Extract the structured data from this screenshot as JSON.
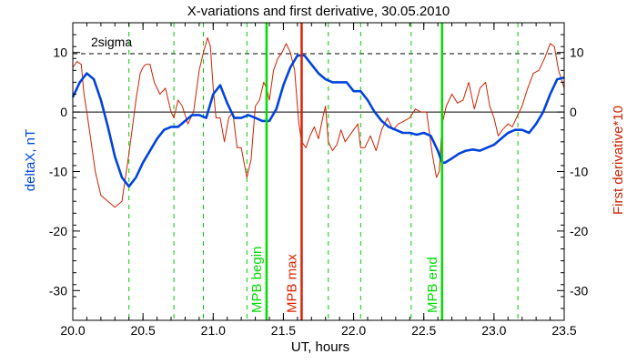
{
  "chart_data": {
    "type": "line",
    "title": "X-variations and first derivative, 30.05.2010",
    "xlabel": "UT, hours",
    "ylabel_left": "deltaX, nT",
    "ylabel_right": "First derivative*10",
    "xlim": [
      20.0,
      23.5
    ],
    "ylim": [
      -35,
      15
    ],
    "x_ticks": [
      20.0,
      20.5,
      21.0,
      21.5,
      22.0,
      22.5,
      23.0,
      23.5
    ],
    "x_tick_labels": [
      "20.0",
      "20.5",
      "21.0",
      "21.5",
      "22.0",
      "22.5",
      "23.0",
      "23.5"
    ],
    "y_ticks": [
      10,
      0,
      -10,
      -20,
      -30
    ],
    "y_tick_labels": [
      "10",
      "0",
      "-10",
      "-20",
      "-30"
    ],
    "threshold": {
      "label": "2sigma",
      "value": 9.8
    },
    "dashed_verticals": [
      20.4,
      20.72,
      20.93,
      21.24,
      21.82,
      22.05,
      22.41,
      23.17
    ],
    "markers": [
      {
        "label": "MPB begin",
        "x": 21.38,
        "color": "#00dd00"
      },
      {
        "label": "MPB max",
        "x": 21.63,
        "color": "#dd2200"
      },
      {
        "label": "MPB end",
        "x": 22.63,
        "color": "#00dd00"
      }
    ],
    "series": [
      {
        "name": "deltaX, nT",
        "color": "#0044dd",
        "x": [
          20.0,
          20.05,
          20.1,
          20.15,
          20.2,
          20.25,
          20.3,
          20.35,
          20.4,
          20.45,
          20.5,
          20.55,
          20.6,
          20.65,
          20.7,
          20.75,
          20.8,
          20.85,
          20.9,
          20.95,
          21.0,
          21.05,
          21.1,
          21.15,
          21.2,
          21.25,
          21.3,
          21.35,
          21.4,
          21.45,
          21.5,
          21.55,
          21.6,
          21.65,
          21.7,
          21.75,
          21.8,
          21.85,
          21.9,
          21.95,
          22.0,
          22.05,
          22.1,
          22.15,
          22.2,
          22.25,
          22.3,
          22.35,
          22.4,
          22.45,
          22.5,
          22.55,
          22.6,
          22.63,
          22.65,
          22.7,
          22.75,
          22.8,
          22.85,
          22.9,
          22.95,
          23.0,
          23.05,
          23.1,
          23.15,
          23.2,
          23.25,
          23.3,
          23.35,
          23.4,
          23.45,
          23.5
        ],
        "y": [
          2.5,
          5.0,
          6.5,
          5.5,
          2.0,
          -2.5,
          -7.5,
          -11.0,
          -12.5,
          -11.0,
          -8.5,
          -6.5,
          -4.5,
          -3.0,
          -2.5,
          -2.5,
          -1.5,
          -0.5,
          -0.5,
          -1.0,
          3.0,
          4.5,
          1.5,
          -1.0,
          -1.0,
          -0.5,
          -1.0,
          -1.5,
          -1.5,
          0.5,
          4.5,
          7.5,
          9.5,
          9.5,
          8.0,
          6.5,
          5.5,
          5.0,
          5.0,
          5.0,
          3.5,
          3.5,
          2.0,
          0.0,
          -1.5,
          -2.5,
          -3.0,
          -3.5,
          -3.5,
          -3.8,
          -3.5,
          -4.0,
          -6.5,
          -8.5,
          -8.5,
          -7.8,
          -7.0,
          -6.5,
          -6.3,
          -6.5,
          -6.0,
          -5.5,
          -4.5,
          -3.5,
          -3.0,
          -3.0,
          -3.5,
          -2.0,
          0.0,
          3.0,
          5.5,
          5.8
        ]
      },
      {
        "name": "First derivative*10",
        "color": "#cc2200",
        "x": [
          20.0,
          20.03,
          20.06,
          20.08,
          20.1,
          20.13,
          20.16,
          20.2,
          20.25,
          20.3,
          20.35,
          20.4,
          20.45,
          20.48,
          20.5,
          20.52,
          20.55,
          20.58,
          20.62,
          20.66,
          20.7,
          20.72,
          20.75,
          20.78,
          20.82,
          20.86,
          20.9,
          20.93,
          20.96,
          20.98,
          21.0,
          21.02,
          21.05,
          21.08,
          21.11,
          21.14,
          21.17,
          21.2,
          21.24,
          21.27,
          21.3,
          21.33,
          21.36,
          21.38,
          21.4,
          21.43,
          21.46,
          21.49,
          21.52,
          21.55,
          21.58,
          21.61,
          21.63,
          21.66,
          21.69,
          21.72,
          21.75,
          21.78,
          21.8,
          21.82,
          21.85,
          21.88,
          21.91,
          21.94,
          21.97,
          22.0,
          22.03,
          22.05,
          22.08,
          22.12,
          22.16,
          22.2,
          22.24,
          22.28,
          22.32,
          22.36,
          22.4,
          22.44,
          22.48,
          22.52,
          22.56,
          22.59,
          22.61,
          22.63,
          22.66,
          22.7,
          22.74,
          22.78,
          22.82,
          22.86,
          22.9,
          22.94,
          22.97,
          23.0,
          23.03,
          23.06,
          23.1,
          23.13,
          23.16,
          23.2,
          23.24,
          23.28,
          23.32,
          23.36,
          23.4,
          23.43,
          23.46,
          23.5
        ],
        "y": [
          7.5,
          8.5,
          8.0,
          3.0,
          0.0,
          -5.0,
          -10.0,
          -14.0,
          -15.0,
          -16.0,
          -15.0,
          -7.0,
          2.0,
          6.5,
          7.5,
          8.0,
          8.0,
          5.0,
          3.0,
          4.0,
          0.0,
          -1.0,
          2.0,
          1.0,
          -2.0,
          0.0,
          7.0,
          10.0,
          12.5,
          11.0,
          4.0,
          -1.0,
          -1.0,
          -5.0,
          -1.0,
          0.0,
          -6.0,
          -6.0,
          -11.0,
          -8.0,
          1.0,
          2.0,
          5.0,
          4.0,
          2.0,
          7.0,
          9.0,
          10.0,
          11.5,
          10.0,
          7.0,
          -2.0,
          -5.0,
          -6.0,
          -4.0,
          -2.5,
          -4.5,
          -1.0,
          1.0,
          -5.0,
          -6.5,
          -5.5,
          -3.0,
          -5.0,
          -4.0,
          -3.0,
          -2.0,
          -6.0,
          -6.0,
          -4.0,
          -6.5,
          -3.0,
          -1.0,
          -3.0,
          -2.0,
          -1.5,
          -1.0,
          0.5,
          0.0,
          0.0,
          -7.0,
          -11.0,
          -10.0,
          -2.0,
          1.0,
          3.0,
          1.5,
          2.0,
          5.0,
          0.5,
          4.0,
          5.0,
          1.0,
          -1.0,
          -4.0,
          -3.0,
          -2.0,
          -2.5,
          -1.0,
          1.0,
          4.0,
          6.5,
          7.0,
          9.0,
          11.5,
          11.0,
          7.0,
          4.0
        ]
      }
    ]
  },
  "colors": {
    "dx": "#0044dd",
    "deriv": "#cc2200",
    "marker_green": "#00dd00",
    "marker_red": "#dd2200",
    "dashed_green": "#00cc00",
    "axis": "#000000"
  }
}
